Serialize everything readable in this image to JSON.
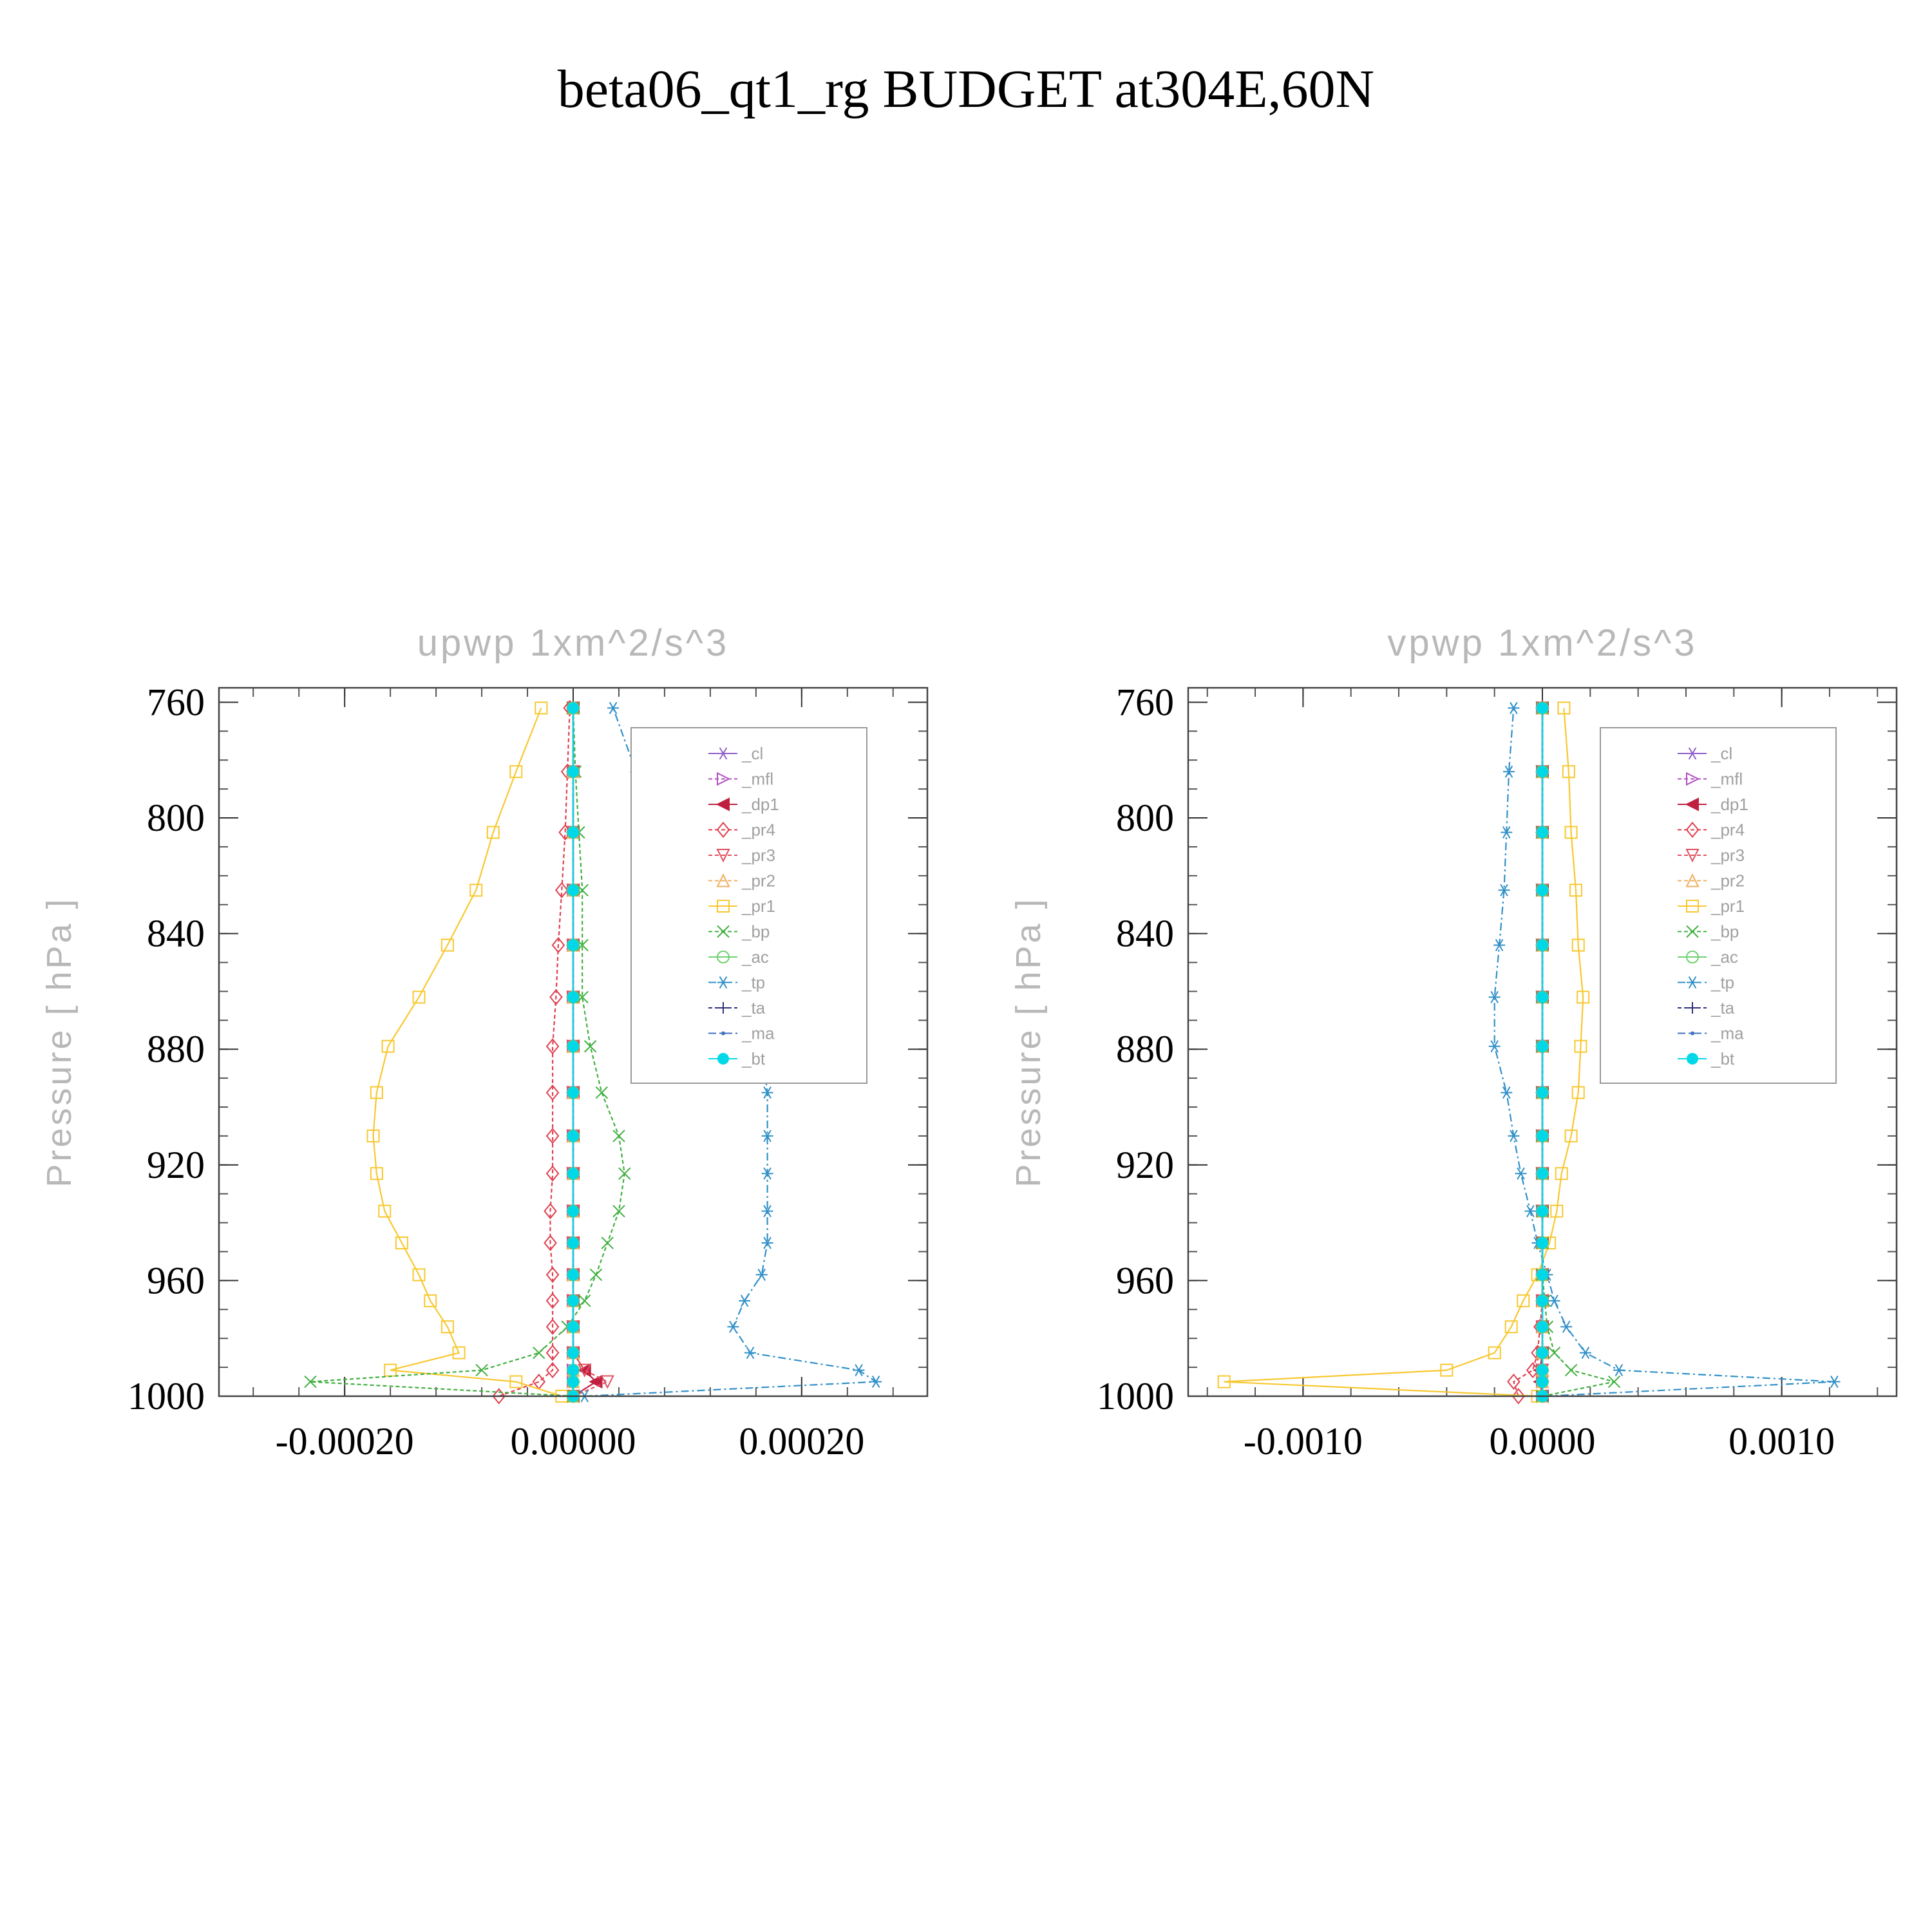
{
  "title": "beta06_qt1_rg  BUDGET at304E,60N",
  "chart_data": [
    {
      "type": "line",
      "title": "upwp    1xm^2/s^3",
      "ylabel": "Pressure  [ hPa ]",
      "xlabel": "",
      "xlim": [
        -0.00031,
        0.00031
      ],
      "ylim": [
        1000,
        755
      ],
      "y_inverted": true,
      "xticks": [
        -0.0002,
        0.0,
        0.0002
      ],
      "xtick_labels": [
        "-0.00020",
        "0.00000",
        "0.00020"
      ],
      "yticks": [
        760,
        800,
        840,
        880,
        920,
        960,
        1000
      ],
      "ytick_labels": [
        "760",
        "800",
        "840",
        "880",
        "920",
        "960",
        "1000"
      ],
      "grid": false,
      "legend_position": "top-right",
      "levels": [
        1000,
        995,
        991,
        985,
        976,
        967,
        958,
        947,
        936,
        923,
        910,
        895,
        879,
        862,
        844,
        825,
        805,
        784,
        762
      ],
      "series": [
        {
          "name": "_cl",
          "color": "#9060c8",
          "marker": "star",
          "dash": "none",
          "values": [
            0,
            0,
            0,
            0,
            0,
            0,
            0,
            0,
            0,
            0,
            0,
            0,
            0,
            0,
            0,
            0,
            0,
            0,
            0
          ]
        },
        {
          "name": "_mfl",
          "color": "#b050c0",
          "marker": "triangle-right",
          "dash": "6,4",
          "values": [
            0,
            0,
            0,
            0,
            0,
            0,
            0,
            0,
            0,
            0,
            0,
            0,
            0,
            0,
            0,
            0,
            0,
            0,
            0
          ]
        },
        {
          "name": "_dp1",
          "color": "#c02040",
          "marker": "triangle-left",
          "dash": "none",
          "values": [
            0,
            2e-05,
            1e-05,
            0,
            0,
            0,
            0,
            0,
            0,
            0,
            0,
            0,
            0,
            0,
            0,
            0,
            0,
            0,
            0
          ]
        },
        {
          "name": "_pr4",
          "color": "#e04050",
          "marker": "diamond",
          "dash": "6,4",
          "values": [
            -6.5e-05,
            -3e-05,
            -1.8e-05,
            -1.8e-05,
            -1.8e-05,
            -1.8e-05,
            -1.8e-05,
            -2e-05,
            -2e-05,
            -1.8e-05,
            -1.8e-05,
            -1.8e-05,
            -1.8e-05,
            -1.5e-05,
            -1.3e-05,
            -1e-05,
            -7e-06,
            -5e-06,
            -3e-06
          ]
        },
        {
          "name": "_pr3",
          "color": "#e05060",
          "marker": "triangle-down",
          "dash": "6,4",
          "values": [
            0,
            3e-05,
            1e-05,
            0,
            0,
            0,
            0,
            0,
            0,
            0,
            0,
            0,
            0,
            0,
            0,
            0,
            0,
            0,
            0
          ]
        },
        {
          "name": "_pr2",
          "color": "#f0b060",
          "marker": "triangle-up",
          "dash": "6,4",
          "values": [
            0,
            0,
            0,
            0,
            0,
            0,
            0,
            0,
            0,
            0,
            0,
            0,
            0,
            0,
            0,
            0,
            0,
            0,
            0
          ]
        },
        {
          "name": "_pr1",
          "color": "#f8c830",
          "marker": "square",
          "dash": "none",
          "values": [
            -1e-05,
            -5e-05,
            -0.00016,
            -0.0001,
            -0.00011,
            -0.000125,
            -0.000135,
            -0.00015,
            -0.000165,
            -0.000172,
            -0.000175,
            -0.000172,
            -0.000162,
            -0.000135,
            -0.00011,
            -8.5e-05,
            -7e-05,
            -5e-05,
            -2.8e-05
          ]
        },
        {
          "name": "_bp",
          "color": "#40b040",
          "marker": "x",
          "dash": "6,4",
          "values": [
            0,
            -0.00023,
            -8e-05,
            -3e-05,
            -5e-06,
            1e-05,
            2e-05,
            3e-05,
            4e-05,
            4.5e-05,
            4e-05,
            2.5e-05,
            1.5e-05,
            8e-06,
            8e-06,
            8e-06,
            5e-06,
            2e-06,
            0
          ]
        },
        {
          "name": "_ac",
          "color": "#70d070",
          "marker": "circle",
          "dash": "none",
          "values": [
            0,
            0,
            0,
            0,
            0,
            0,
            0,
            0,
            0,
            0,
            0,
            0,
            0,
            0,
            0,
            0,
            0,
            0,
            0
          ]
        },
        {
          "name": "_tp",
          "color": "#3090c8",
          "marker": "star",
          "dash": "12,5,3,5",
          "values": [
            1e-05,
            0.000265,
            0.00025,
            0.000155,
            0.00014,
            0.00015,
            0.000165,
            0.00017,
            0.00017,
            0.00017,
            0.00017,
            0.00017,
            0.000165,
            0.000155,
            0.000145,
            8.5e-05,
            7e-05,
            5.5e-05,
            3.5e-05
          ]
        },
        {
          "name": "_ta",
          "color": "#303080",
          "marker": "plus",
          "dash": "6,4",
          "values": [
            0,
            0,
            0,
            0,
            0,
            0,
            0,
            0,
            0,
            0,
            0,
            0,
            0,
            0,
            0,
            0,
            0,
            0,
            0
          ]
        },
        {
          "name": "_ma",
          "color": "#4070c0",
          "marker": "dot",
          "dash": "12,5,3,5",
          "values": [
            0,
            0,
            0,
            0,
            0,
            0,
            0,
            0,
            0,
            0,
            0,
            0,
            0,
            0,
            0,
            0,
            0,
            0,
            0
          ]
        },
        {
          "name": "_bt",
          "color": "#00d8e8",
          "marker": "filled-circle",
          "dash": "none",
          "values": [
            0,
            0,
            0,
            0,
            0,
            0,
            0,
            0,
            0,
            0,
            0,
            0,
            0,
            0,
            0,
            0,
            0,
            0,
            0
          ]
        }
      ]
    },
    {
      "type": "line",
      "title": "vpwp    1xm^2/s^3",
      "ylabel": "Pressure  [ hPa ]",
      "xlabel": "",
      "xlim": [
        -0.00148,
        0.00148
      ],
      "ylim": [
        1000,
        755
      ],
      "y_inverted": true,
      "xticks": [
        -0.001,
        0.0,
        0.001
      ],
      "xtick_labels": [
        "-0.0010",
        "0.0000",
        "0.0010"
      ],
      "yticks": [
        760,
        800,
        840,
        880,
        920,
        960,
        1000
      ],
      "ytick_labels": [
        "760",
        "800",
        "840",
        "880",
        "920",
        "960",
        "1000"
      ],
      "grid": false,
      "legend_position": "top-right",
      "levels": [
        1000,
        995,
        991,
        985,
        976,
        967,
        958,
        947,
        936,
        923,
        910,
        895,
        879,
        862,
        844,
        825,
        805,
        784,
        762
      ],
      "series": [
        {
          "name": "_cl",
          "color": "#9060c8",
          "marker": "star",
          "dash": "none",
          "values": [
            0,
            0,
            0,
            0,
            0,
            0,
            0,
            0,
            0,
            0,
            0,
            0,
            0,
            0,
            0,
            0,
            0,
            0,
            0
          ]
        },
        {
          "name": "_mfl",
          "color": "#b050c0",
          "marker": "triangle-right",
          "dash": "6,4",
          "values": [
            0,
            0,
            0,
            0,
            0,
            0,
            0,
            0,
            0,
            0,
            0,
            0,
            0,
            0,
            0,
            0,
            0,
            0,
            0
          ]
        },
        {
          "name": "_dp1",
          "color": "#c02040",
          "marker": "triangle-left",
          "dash": "none",
          "values": [
            0,
            -1e-05,
            -1e-05,
            0,
            0,
            0,
            0,
            0,
            0,
            0,
            0,
            0,
            0,
            0,
            0,
            0,
            0,
            0,
            0
          ]
        },
        {
          "name": "_pr4",
          "color": "#e04050",
          "marker": "diamond",
          "dash": "6,4",
          "values": [
            -0.0001,
            -0.00012,
            -4e-05,
            -2e-05,
            -1e-05,
            0,
            0,
            0,
            0,
            0,
            0,
            0,
            0,
            0,
            0,
            0,
            0,
            0,
            0
          ]
        },
        {
          "name": "_pr3",
          "color": "#e05060",
          "marker": "triangle-down",
          "dash": "6,4",
          "values": [
            0,
            0,
            0,
            0,
            0,
            0,
            0,
            0,
            0,
            0,
            0,
            0,
            0,
            0,
            0,
            0,
            0,
            0,
            0
          ]
        },
        {
          "name": "_pr2",
          "color": "#f0b060",
          "marker": "triangle-up",
          "dash": "6,4",
          "values": [
            0,
            0,
            0,
            0,
            0,
            0,
            0,
            0,
            0,
            0,
            0,
            0,
            0,
            0,
            0,
            0,
            0,
            0,
            0
          ]
        },
        {
          "name": "_pr1",
          "color": "#f8c830",
          "marker": "square",
          "dash": "none",
          "values": [
            -2e-05,
            -0.00133,
            -0.0004,
            -0.0002,
            -0.00013,
            -8e-05,
            -2e-05,
            3e-05,
            6e-05,
            8e-05,
            0.00012,
            0.00015,
            0.00016,
            0.00017,
            0.00015,
            0.00014,
            0.00012,
            0.00011,
            9e-05
          ]
        },
        {
          "name": "_bp",
          "color": "#40b040",
          "marker": "x",
          "dash": "6,4",
          "values": [
            0,
            0.0003,
            0.00012,
            5e-05,
            2e-05,
            1e-05,
            0,
            0,
            0,
            0,
            0,
            0,
            0,
            0,
            0,
            0,
            0,
            0,
            0
          ]
        },
        {
          "name": "_ac",
          "color": "#70d070",
          "marker": "circle",
          "dash": "none",
          "values": [
            0,
            0,
            0,
            0,
            0,
            0,
            0,
            0,
            0,
            0,
            0,
            0,
            0,
            0,
            0,
            0,
            0,
            0,
            0
          ]
        },
        {
          "name": "_tp",
          "color": "#3090c8",
          "marker": "star",
          "dash": "12,5,3,5",
          "values": [
            1e-05,
            0.00122,
            0.00032,
            0.00018,
            0.0001,
            5e-05,
            2e-05,
            -2e-05,
            -5e-05,
            -9e-05,
            -0.00012,
            -0.00015,
            -0.0002,
            -0.0002,
            -0.00018,
            -0.00016,
            -0.00015,
            -0.00014,
            -0.00012
          ]
        },
        {
          "name": "_ta",
          "color": "#303080",
          "marker": "plus",
          "dash": "6,4",
          "values": [
            0,
            0,
            0,
            0,
            0,
            0,
            0,
            0,
            0,
            0,
            0,
            0,
            0,
            0,
            0,
            0,
            0,
            0,
            0
          ]
        },
        {
          "name": "_ma",
          "color": "#4070c0",
          "marker": "dot",
          "dash": "12,5,3,5",
          "values": [
            0,
            0,
            0,
            0,
            0,
            0,
            0,
            0,
            0,
            0,
            0,
            0,
            0,
            0,
            0,
            0,
            0,
            0,
            0
          ]
        },
        {
          "name": "_bt",
          "color": "#00d8e8",
          "marker": "filled-circle",
          "dash": "none",
          "values": [
            0,
            0,
            0,
            0,
            0,
            0,
            0,
            0,
            0,
            0,
            0,
            0,
            0,
            0,
            0,
            0,
            0,
            0,
            0
          ]
        }
      ]
    }
  ]
}
